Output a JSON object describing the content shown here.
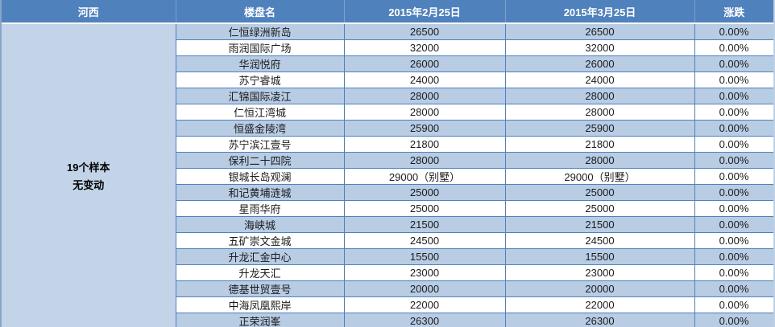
{
  "colors": {
    "header_bg": "#4f81bd",
    "header_text": "#ffffff",
    "stripe_row_bg": "#b8cce4",
    "plain_row_bg": "#ffffff",
    "summary_cell_bg": "#c3d4e8",
    "cell_border": "#4f81bd",
    "body_text": "#1b1b1b"
  },
  "chart_data": {
    "type": "table",
    "region_label": "河西",
    "region_summary": [
      "19个样本",
      "无变动"
    ],
    "columns": [
      "河西",
      "楼盘名",
      "2015年2月25日",
      "2015年3月25日",
      "涨跌"
    ],
    "rows": [
      [
        "仁恒绿洲新岛",
        "26500",
        "26500",
        "0.00%"
      ],
      [
        "雨润国际广场",
        "32000",
        "32000",
        "0.00%"
      ],
      [
        "华润悦府",
        "26000",
        "26000",
        "0.00%"
      ],
      [
        "苏宁睿城",
        "24000",
        "24000",
        "0.00%"
      ],
      [
        "汇锦国际凌江",
        "28000",
        "28000",
        "0.00%"
      ],
      [
        "仁恒江湾城",
        "28000",
        "28000",
        "0.00%"
      ],
      [
        "恒盛金陵湾",
        "25900",
        "25900",
        "0.00%"
      ],
      [
        "苏宁滨江壹号",
        "21800",
        "21800",
        "0.00%"
      ],
      [
        "保利二十四院",
        "28000",
        "28000",
        "0.00%"
      ],
      [
        "银城长岛观澜",
        "29000（别墅）",
        "29000（别墅）",
        "0.00%"
      ],
      [
        "和记黄埔涟城",
        "25000",
        "25000",
        "0.00%"
      ],
      [
        "星雨华府",
        "25000",
        "25000",
        "0.00%"
      ],
      [
        "海峡城",
        "21500",
        "21500",
        "0.00%"
      ],
      [
        "五矿崇文金城",
        "24500",
        "24500",
        "0.00%"
      ],
      [
        "升龙汇金中心",
        "15500",
        "15500",
        "0.00%"
      ],
      [
        "升龙天汇",
        "23000",
        "23000",
        "0.00%"
      ],
      [
        "德基世贸壹号",
        "20000",
        "20000",
        "0.00%"
      ],
      [
        "中海凤凰熙岸",
        "22000",
        "22000",
        "0.00%"
      ],
      [
        "正荣润峯",
        "26300",
        "26300",
        "0.00%"
      ]
    ]
  }
}
